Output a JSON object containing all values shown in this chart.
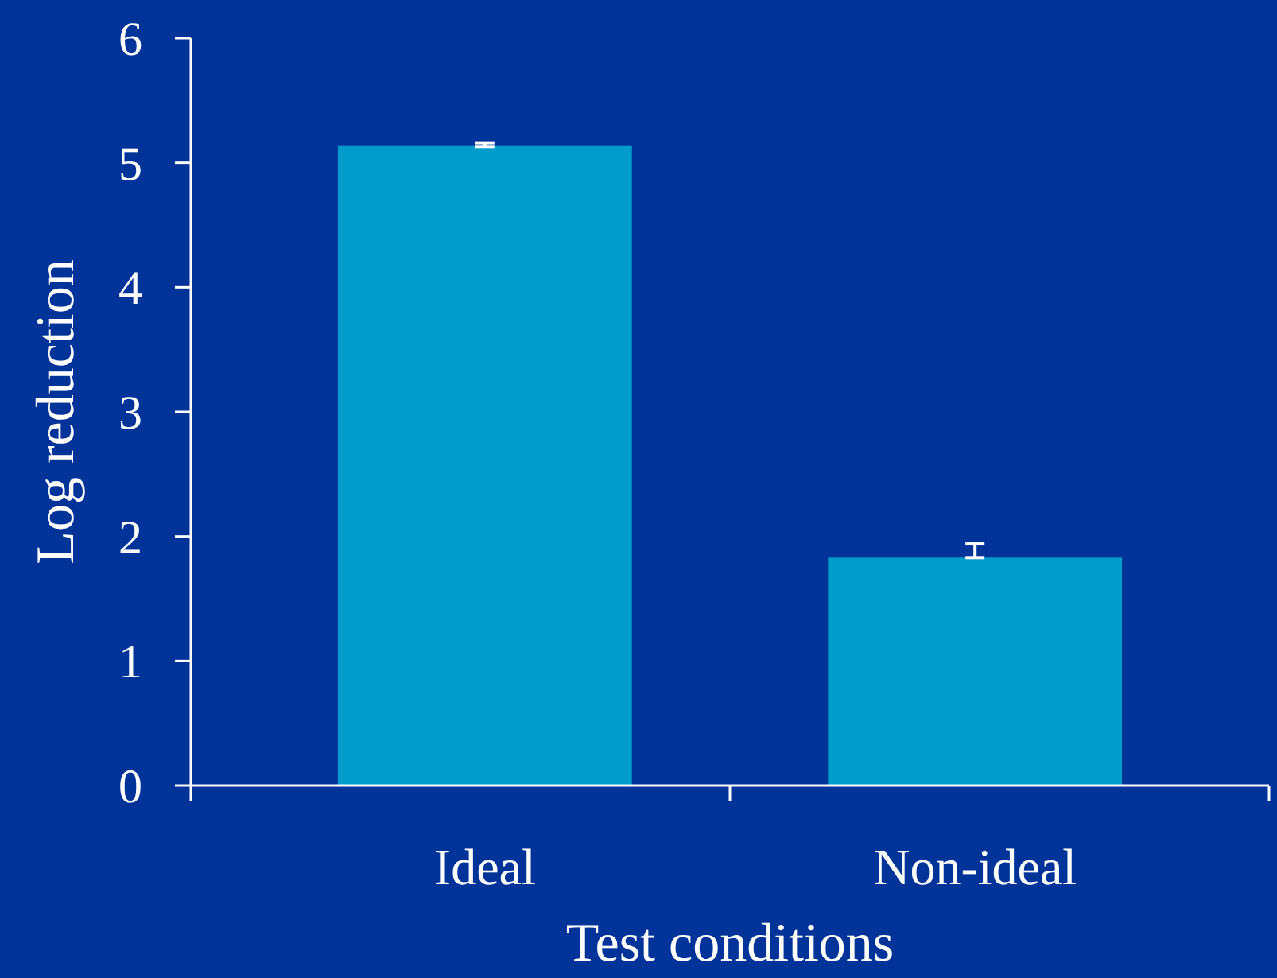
{
  "chart_data": {
    "type": "bar",
    "xlabel": "Test conditions",
    "ylabel": "Log reduction",
    "categories": [
      "Ideal",
      "Non-ideal"
    ],
    "values": [
      5.14,
      1.83
    ],
    "errors": [
      [
        5.13,
        5.16
      ],
      [
        1.83,
        1.94
      ]
    ],
    "color": "#009ccc",
    "ylim": [
      0,
      6
    ],
    "yticks": [
      0,
      1,
      2,
      3,
      4,
      5,
      6
    ],
    "grid": false
  }
}
